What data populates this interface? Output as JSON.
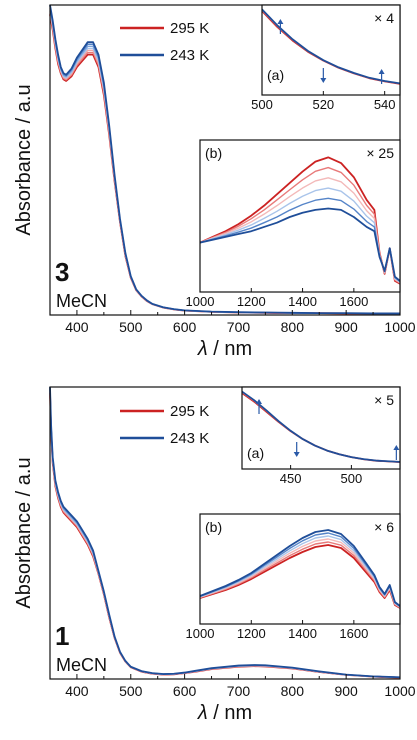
{
  "chart_data": [
    {
      "type": "line",
      "panel_label": "3",
      "solvent": "MeCN",
      "ylabel": "Absorbance / a.u",
      "xlabel": "λ / nm",
      "xlim": [
        350,
        1000
      ],
      "ylim": [
        0,
        1
      ],
      "x_ticks": [
        400,
        500,
        600,
        700,
        800,
        900,
        1000
      ],
      "legend": {
        "position": "top-center",
        "entries": [
          "295 K",
          "243 K"
        ]
      },
      "series": [
        {
          "name": "295 K",
          "color": "#cc2222",
          "x": [
            350,
            355,
            360,
            365,
            370,
            375,
            380,
            390,
            400,
            410,
            420,
            430,
            440,
            450,
            460,
            470,
            480,
            490,
            500,
            510,
            520,
            530,
            540,
            560,
            580,
            600,
            650,
            700,
            750,
            800,
            850,
            900,
            950,
            1000
          ],
          "y": [
            0.97,
            0.92,
            0.86,
            0.81,
            0.78,
            0.76,
            0.755,
            0.77,
            0.8,
            0.82,
            0.84,
            0.84,
            0.8,
            0.71,
            0.58,
            0.43,
            0.3,
            0.19,
            0.12,
            0.08,
            0.06,
            0.045,
            0.035,
            0.024,
            0.018,
            0.014,
            0.01,
            0.008,
            0.007,
            0.006,
            0.006,
            0.005,
            0.005,
            0.004
          ]
        },
        {
          "name": "243 K",
          "color": "#1f4e99",
          "x": [
            350,
            355,
            360,
            365,
            370,
            375,
            380,
            390,
            400,
            410,
            420,
            430,
            440,
            450,
            460,
            470,
            480,
            490,
            500,
            510,
            520,
            530,
            540,
            560,
            580,
            600,
            650,
            700,
            750,
            800,
            850,
            900,
            950,
            1000
          ],
          "y": [
            1.0,
            0.95,
            0.89,
            0.84,
            0.8,
            0.78,
            0.775,
            0.795,
            0.83,
            0.855,
            0.88,
            0.88,
            0.84,
            0.75,
            0.61,
            0.45,
            0.31,
            0.2,
            0.125,
            0.083,
            0.062,
            0.047,
            0.036,
            0.025,
            0.019,
            0.015,
            0.011,
            0.009,
            0.008,
            0.007,
            0.006,
            0.006,
            0.005,
            0.005
          ]
        }
      ],
      "insets": [
        {
          "label": "(a)",
          "factor": "× 4",
          "xlim": [
            500,
            545
          ],
          "x_ticks": [
            500,
            520,
            540
          ],
          "series": [
            {
              "name": "295 K",
              "x": [
                500,
                505,
                510,
                515,
                520,
                525,
                530,
                535,
                540,
                545
              ],
              "y": [
                1.0,
                0.8,
                0.63,
                0.49,
                0.38,
                0.29,
                0.22,
                0.16,
                0.12,
                0.09
              ]
            },
            {
              "name": "243 K",
              "x": [
                500,
                505,
                510,
                515,
                520,
                525,
                530,
                535,
                540,
                545
              ],
              "y": [
                1.02,
                0.82,
                0.645,
                0.5,
                0.385,
                0.295,
                0.225,
                0.165,
                0.125,
                0.095
              ]
            }
          ]
        },
        {
          "label": "(b)",
          "factor": "× 25",
          "xlim": [
            1000,
            1780
          ],
          "x_ticks": [
            1000,
            1200,
            1400,
            1600
          ],
          "series": [
            {
              "name": "295 K",
              "x": [
                1000,
                1050,
                1100,
                1150,
                1200,
                1250,
                1300,
                1350,
                1400,
                1450,
                1500,
                1550,
                1600,
                1650,
                1680,
                1700,
                1720,
                1740,
                1760,
                1780
              ],
              "y": [
                0.32,
                0.36,
                0.4,
                0.45,
                0.51,
                0.58,
                0.66,
                0.74,
                0.82,
                0.89,
                0.92,
                0.88,
                0.78,
                0.62,
                0.55,
                0.25,
                0.1,
                0.28,
                0.05,
                0.03
              ]
            },
            {
              "name": "243 K",
              "x": [
                1000,
                1050,
                1100,
                1150,
                1200,
                1250,
                1300,
                1350,
                1400,
                1450,
                1500,
                1550,
                1600,
                1650,
                1680,
                1700,
                1720,
                1740,
                1760,
                1780
              ],
              "y": [
                0.32,
                0.34,
                0.36,
                0.38,
                0.4,
                0.43,
                0.46,
                0.5,
                0.53,
                0.55,
                0.56,
                0.55,
                0.5,
                0.43,
                0.4,
                0.22,
                0.12,
                0.28,
                0.08,
                0.05
              ]
            }
          ]
        }
      ]
    },
    {
      "type": "line",
      "panel_label": "1",
      "solvent": "MeCN",
      "ylabel": "Absorbance / a.u",
      "xlabel": "λ / nm",
      "xlim": [
        350,
        1000
      ],
      "ylim": [
        0,
        1
      ],
      "x_ticks": [
        400,
        500,
        600,
        700,
        800,
        900,
        1000
      ],
      "legend": {
        "position": "top-center",
        "entries": [
          "295 K",
          "243 K"
        ]
      },
      "series": [
        {
          "name": "295 K",
          "color": "#cc2222",
          "x": [
            350,
            352,
            355,
            360,
            365,
            370,
            375,
            380,
            385,
            390,
            400,
            410,
            420,
            430,
            440,
            450,
            460,
            470,
            480,
            490,
            500,
            520,
            540,
            560,
            580,
            600,
            620,
            650,
            700,
            730,
            750,
            800,
            850,
            900,
            950,
            1000
          ],
          "y": [
            0.98,
            0.85,
            0.74,
            0.66,
            0.62,
            0.59,
            0.57,
            0.56,
            0.55,
            0.54,
            0.52,
            0.49,
            0.46,
            0.42,
            0.36,
            0.29,
            0.21,
            0.14,
            0.09,
            0.06,
            0.04,
            0.025,
            0.018,
            0.015,
            0.016,
            0.02,
            0.025,
            0.034,
            0.042,
            0.044,
            0.043,
            0.036,
            0.024,
            0.014,
            0.008,
            0.005
          ]
        },
        {
          "name": "243 K",
          "color": "#1f4e99",
          "x": [
            350,
            352,
            355,
            360,
            365,
            370,
            375,
            380,
            385,
            390,
            400,
            410,
            420,
            430,
            440,
            450,
            460,
            470,
            480,
            490,
            500,
            520,
            540,
            560,
            580,
            600,
            620,
            650,
            700,
            730,
            750,
            800,
            850,
            900,
            950,
            1000
          ],
          "y": [
            1.0,
            0.87,
            0.76,
            0.68,
            0.64,
            0.61,
            0.59,
            0.58,
            0.57,
            0.56,
            0.54,
            0.51,
            0.48,
            0.44,
            0.37,
            0.3,
            0.22,
            0.145,
            0.093,
            0.062,
            0.042,
            0.027,
            0.02,
            0.017,
            0.018,
            0.022,
            0.028,
            0.037,
            0.046,
            0.048,
            0.047,
            0.039,
            0.026,
            0.015,
            0.009,
            0.006
          ]
        }
      ],
      "insets": [
        {
          "label": "(a)",
          "factor": "× 5",
          "xlim": [
            410,
            540
          ],
          "x_ticks": [
            450,
            500
          ],
          "series": [
            {
              "name": "295 K",
              "x": [
                410,
                420,
                430,
                440,
                450,
                460,
                470,
                480,
                490,
                500,
                510,
                520,
                530,
                540
              ],
              "y": [
                1.0,
                0.88,
                0.74,
                0.6,
                0.47,
                0.36,
                0.27,
                0.2,
                0.15,
                0.11,
                0.08,
                0.06,
                0.05,
                0.04
              ]
            },
            {
              "name": "243 K",
              "x": [
                410,
                420,
                430,
                440,
                450,
                460,
                470,
                480,
                490,
                500,
                510,
                520,
                530,
                540
              ],
              "y": [
                1.02,
                0.9,
                0.76,
                0.61,
                0.475,
                0.36,
                0.27,
                0.2,
                0.15,
                0.11,
                0.082,
                0.062,
                0.052,
                0.043
              ]
            }
          ]
        },
        {
          "label": "(b)",
          "factor": "× 6",
          "xlim": [
            1000,
            1780
          ],
          "x_ticks": [
            1000,
            1200,
            1400,
            1600
          ],
          "series": [
            {
              "name": "295 K",
              "x": [
                1000,
                1050,
                1100,
                1150,
                1200,
                1250,
                1300,
                1350,
                1400,
                1450,
                1500,
                1550,
                1600,
                1650,
                1680,
                1700,
                1720,
                1740,
                1760,
                1780
              ],
              "y": [
                0.22,
                0.26,
                0.3,
                0.35,
                0.41,
                0.48,
                0.55,
                0.62,
                0.68,
                0.73,
                0.75,
                0.72,
                0.62,
                0.47,
                0.38,
                0.28,
                0.22,
                0.3,
                0.15,
                0.12
              ]
            },
            {
              "name": "243 K",
              "x": [
                1000,
                1050,
                1100,
                1150,
                1200,
                1250,
                1300,
                1350,
                1400,
                1450,
                1500,
                1550,
                1600,
                1650,
                1680,
                1700,
                1720,
                1740,
                1760,
                1780
              ],
              "y": [
                0.24,
                0.29,
                0.34,
                0.4,
                0.47,
                0.56,
                0.65,
                0.74,
                0.82,
                0.88,
                0.9,
                0.86,
                0.74,
                0.56,
                0.45,
                0.33,
                0.26,
                0.35,
                0.18,
                0.14
              ]
            }
          ]
        }
      ]
    }
  ]
}
